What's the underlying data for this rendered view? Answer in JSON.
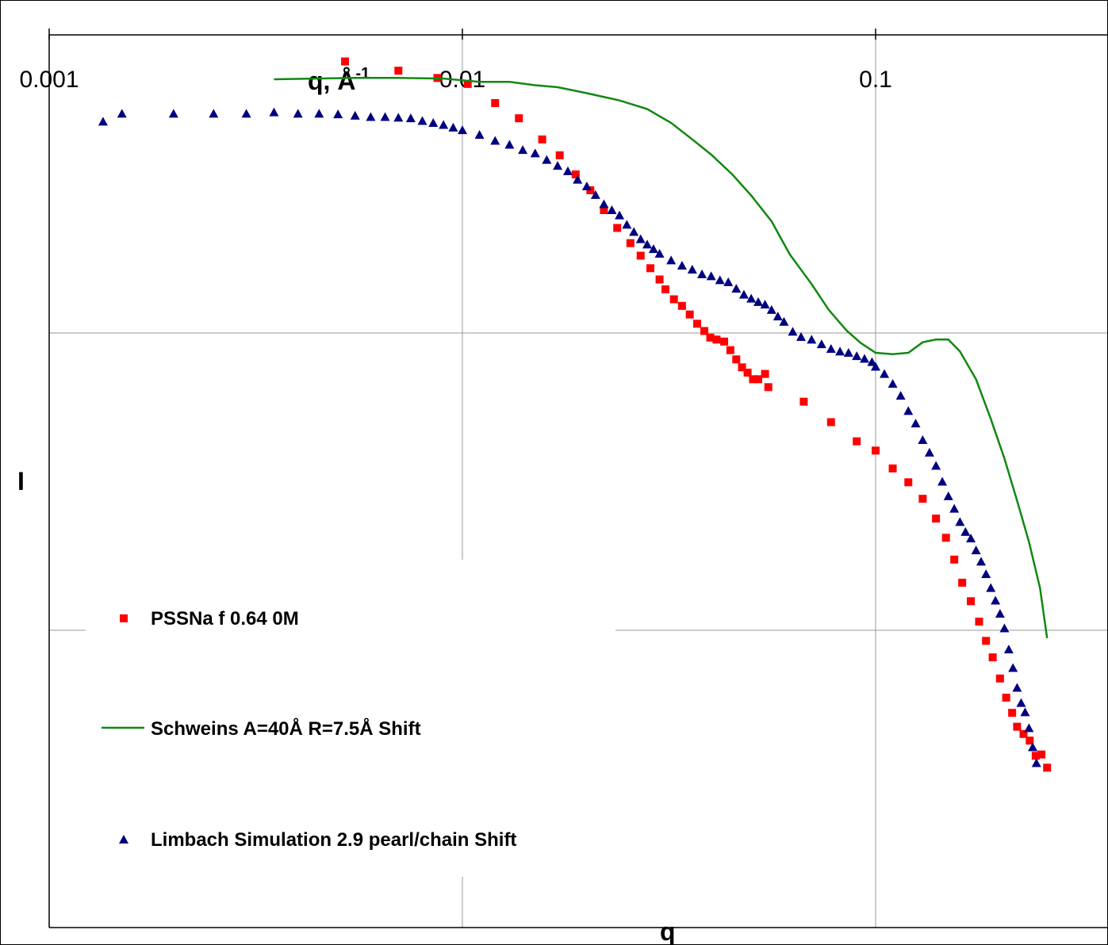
{
  "chart_data": {
    "type": "scatter",
    "title": "",
    "xlabel_top": "q, Å",
    "xlabel_top_superscript": "-1",
    "xlabel_bottom": "q",
    "ylabel": "I",
    "x_scale": "log",
    "y_scale": "log",
    "xlim": [
      0.001,
      0.26
    ],
    "ylim_decades": 3,
    "grid": true,
    "x_ticks": [
      {
        "value": 0.001,
        "label": "0.001"
      },
      {
        "value": 0.01,
        "label": "0.01"
      },
      {
        "value": 0.1,
        "label": "0.1"
      }
    ],
    "legend_placement": "bottom-left",
    "series": [
      {
        "name": "PSSNa f 0.64 0M",
        "style": "markers",
        "marker": "square",
        "color": "#ff0000",
        "x": [
          0.0052,
          0.007,
          0.0087,
          0.0103,
          0.012,
          0.0137,
          0.0156,
          0.0172,
          0.0188,
          0.0204,
          0.022,
          0.0237,
          0.0255,
          0.027,
          0.0285,
          0.03,
          0.031,
          0.0325,
          0.034,
          0.0355,
          0.037,
          0.0385,
          0.0398,
          0.0412,
          0.043,
          0.0445,
          0.046,
          0.0475,
          0.049,
          0.0505,
          0.052,
          0.054,
          0.055,
          0.067,
          0.078,
          0.09,
          0.1,
          0.11,
          0.12,
          0.13,
          0.14,
          0.148,
          0.155,
          0.162,
          0.17,
          0.178,
          0.185,
          0.192,
          0.2,
          0.207,
          0.214,
          0.22,
          0.228,
          0.236,
          0.244,
          0.252,
          0.26
        ],
        "y": [
          0.9133,
          0.8822,
          0.8577,
          0.8377,
          0.7733,
          0.7222,
          0.6511,
          0.5977,
          0.5333,
          0.48,
          0.4133,
          0.3533,
          0.3022,
          0.26,
          0.2178,
          0.18,
          0.1467,
          0.1133,
          0.0911,
          0.0622,
          0.0311,
          0.0067,
          -0.0156,
          -0.0222,
          -0.0289,
          -0.0578,
          -0.0889,
          -0.1156,
          -0.1333,
          -0.1556,
          -0.1556,
          -0.1378,
          -0.1822,
          -0.2311,
          -0.3,
          -0.3644,
          -0.3956,
          -0.4556,
          -0.5022,
          -0.5577,
          -0.6244,
          -0.6889,
          -0.7622,
          -0.84,
          -0.9022,
          -0.9711,
          -1.0356,
          -1.0911,
          -1.1622,
          -1.2267,
          -1.2778,
          -1.3244,
          -1.3488,
          -1.3711,
          -1.4222,
          -1.4178,
          -1.4622
        ]
      },
      {
        "name": "Schweins A=40Å R=7.5Å Shift",
        "style": "line",
        "color": "#118811",
        "x": [
          0.0035,
          0.0055,
          0.007,
          0.009,
          0.011,
          0.013,
          0.015,
          0.017,
          0.02,
          0.024,
          0.028,
          0.032,
          0.036,
          0.04,
          0.045,
          0.05,
          0.056,
          0.062,
          0.07,
          0.077,
          0.085,
          0.092,
          0.1,
          0.11,
          0.12,
          0.13,
          0.14,
          0.15,
          0.16,
          0.175,
          0.19,
          0.205,
          0.22,
          0.235,
          0.25,
          0.26
        ],
        "y": [
          0.8533,
          0.8578,
          0.8578,
          0.8556,
          0.8444,
          0.8444,
          0.8333,
          0.8267,
          0.8067,
          0.7822,
          0.7533,
          0.7067,
          0.6511,
          0.6,
          0.5333,
          0.4622,
          0.3756,
          0.2644,
          0.1644,
          0.0778,
          0.0089,
          -0.0333,
          -0.0667,
          -0.0711,
          -0.0667,
          -0.0311,
          -0.0222,
          -0.0222,
          -0.0622,
          -0.1556,
          -0.2889,
          -0.4222,
          -0.5644,
          -0.7022,
          -0.8578,
          -1.0267
        ]
      },
      {
        "name": "Limbach Simulation 2.9 pearl/chain Shift",
        "style": "markers",
        "marker": "triangle",
        "color": "#000080",
        "x": [
          0.00135,
          0.0015,
          0.002,
          0.0025,
          0.003,
          0.0035,
          0.004,
          0.0045,
          0.005,
          0.0055,
          0.006,
          0.0065,
          0.007,
          0.0075,
          0.008,
          0.0085,
          0.009,
          0.0095,
          0.01,
          0.011,
          0.012,
          0.013,
          0.014,
          0.015,
          0.016,
          0.017,
          0.018,
          0.019,
          0.02,
          0.021,
          0.022,
          0.023,
          0.024,
          0.025,
          0.026,
          0.027,
          0.028,
          0.029,
          0.03,
          0.032,
          0.034,
          0.036,
          0.038,
          0.04,
          0.042,
          0.044,
          0.046,
          0.048,
          0.05,
          0.052,
          0.054,
          0.056,
          0.058,
          0.06,
          0.063,
          0.066,
          0.07,
          0.074,
          0.078,
          0.082,
          0.086,
          0.09,
          0.094,
          0.098,
          0.1,
          0.105,
          0.11,
          0.115,
          0.12,
          0.125,
          0.13,
          0.135,
          0.14,
          0.145,
          0.15,
          0.155,
          0.16,
          0.165,
          0.17,
          0.175,
          0.18,
          0.185,
          0.19,
          0.195,
          0.2,
          0.205,
          0.21,
          0.215,
          0.22,
          0.225,
          0.23,
          0.235,
          0.24,
          0.245
        ],
        "y": [
          0.7111,
          0.7378,
          0.7378,
          0.7378,
          0.7378,
          0.7422,
          0.7378,
          0.7378,
          0.7356,
          0.7311,
          0.7267,
          0.7267,
          0.7244,
          0.7222,
          0.7133,
          0.7067,
          0.7,
          0.6911,
          0.6822,
          0.6667,
          0.6467,
          0.6333,
          0.6156,
          0.6044,
          0.5822,
          0.5622,
          0.5444,
          0.5156,
          0.4933,
          0.4644,
          0.4333,
          0.4133,
          0.3956,
          0.3644,
          0.34,
          0.3156,
          0.2978,
          0.2822,
          0.2667,
          0.2444,
          0.2267,
          0.2133,
          0.1978,
          0.1911,
          0.1778,
          0.1711,
          0.1489,
          0.1289,
          0.1156,
          0.1044,
          0.0956,
          0.0778,
          0.0556,
          0.0378,
          0.0044,
          -0.0133,
          -0.0222,
          -0.0378,
          -0.0533,
          -0.0622,
          -0.0667,
          -0.0778,
          -0.0867,
          -0.0978,
          -0.1133,
          -0.1378,
          -0.1711,
          -0.2111,
          -0.2622,
          -0.3044,
          -0.36,
          -0.4022,
          -0.4467,
          -0.5,
          -0.5489,
          -0.5911,
          -0.6356,
          -0.6689,
          -0.6911,
          -0.7311,
          -0.7689,
          -0.8111,
          -0.8578,
          -0.9,
          -0.9444,
          -0.9933,
          -1.0644,
          -1.1267,
          -1.1933,
          -1.2444,
          -1.2756,
          -1.3289,
          -1.3933,
          -1.4467
        ]
      }
    ]
  }
}
